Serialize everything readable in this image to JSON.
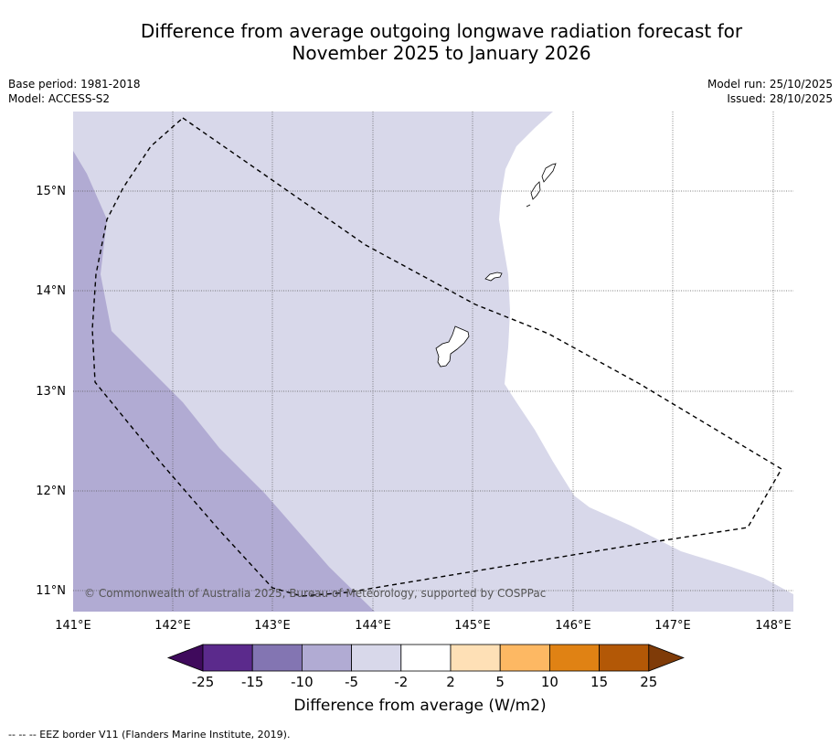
{
  "title_line1": "Difference from average outgoing longwave radiation forecast for",
  "title_line2": "November 2025 to January 2026",
  "base_period": "Base period: 1981-2018",
  "model": "Model: ACCESS-S2",
  "model_run": "Model run: 25/10/2025",
  "issued": "Issued: 28/10/2025",
  "copyright": "© Commonwealth of Australia 2025, Bureau of Meteorology, supported by COSPPac",
  "lon_ticks": [
    "141°E",
    "142°E",
    "143°E",
    "144°E",
    "145°E",
    "146°E",
    "147°E",
    "148°E"
  ],
  "lat_ticks": [
    "15°N",
    "14°N",
    "13°N",
    "12°N",
    "11°N"
  ],
  "colorbar": {
    "title": "Difference from average (W/m2)",
    "tick_labels": [
      "-25",
      "-15",
      "-10",
      "-5",
      "-2",
      "2",
      "5",
      "10",
      "15",
      "25"
    ],
    "colors": [
      "#3f0a5c",
      "#5b2a8c",
      "#8375b2",
      "#b1abd3",
      "#d8d8ea",
      "#ffffff",
      "#fee0b6",
      "#fdb863",
      "#e08214",
      "#b35806",
      "#7f3b08"
    ]
  },
  "footnote": "-- -- -- EEZ border V11 (Flanders Marine Institute, 2019)."
}
